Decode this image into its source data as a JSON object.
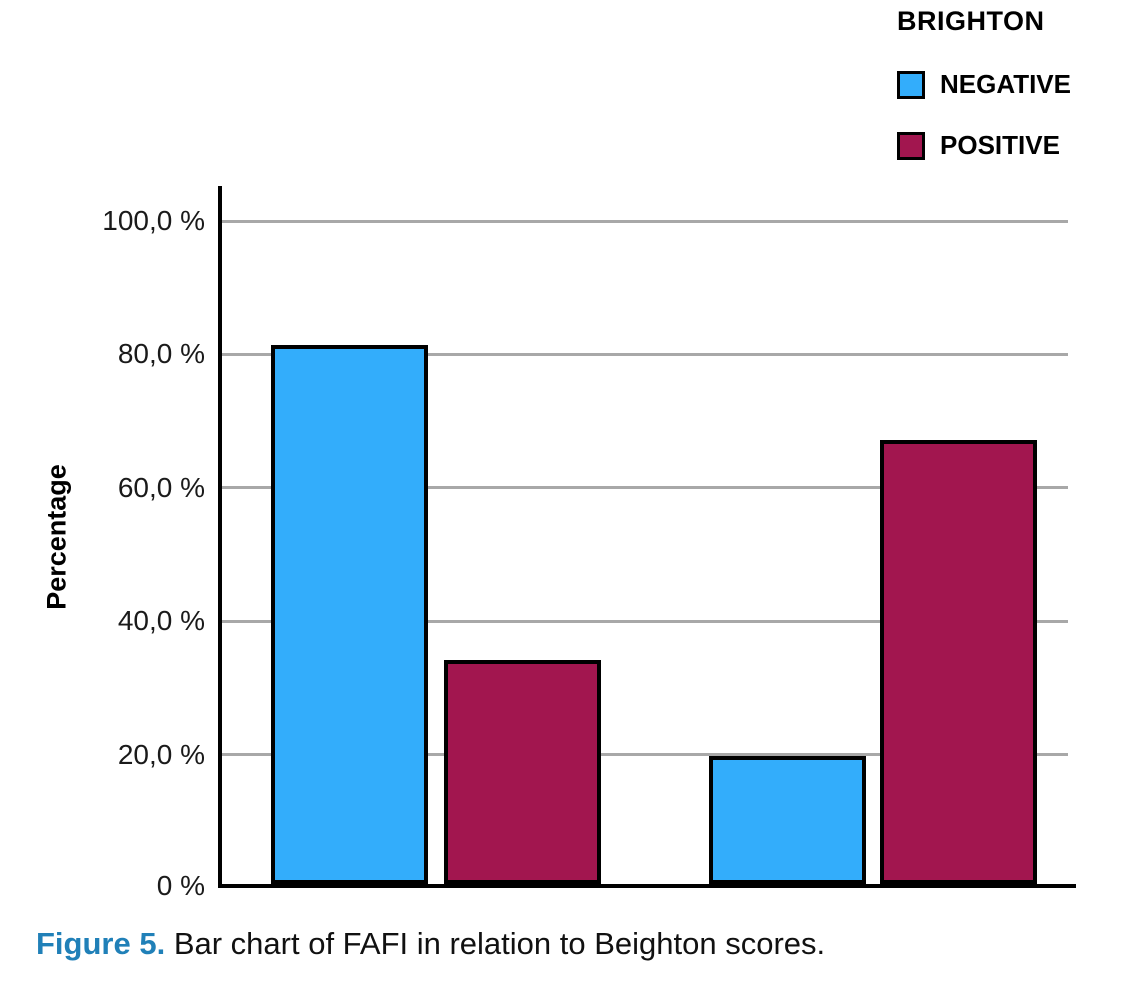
{
  "legend": {
    "title": "BRIGHTON",
    "items": [
      {
        "id": "negative",
        "label": "NEGATIVE",
        "color": "#33ADFB"
      },
      {
        "id": "positive",
        "label": "POSITIVE",
        "color": "#A2164F"
      }
    ]
  },
  "chart_data": {
    "type": "bar",
    "title": "",
    "xlabel": "",
    "ylabel": "Percentage",
    "ylim": [
      0,
      100
    ],
    "grid": true,
    "legend_position": "top-right",
    "categories": [
      "",
      ""
    ],
    "yticks": [
      {
        "value": 100,
        "label": "100,0 %"
      },
      {
        "value": 80,
        "label": "80,0 %"
      },
      {
        "value": 60,
        "label": "60,0 %"
      },
      {
        "value": 40,
        "label": "40,0 %"
      },
      {
        "value": 20,
        "label": "20,0 %"
      },
      {
        "value": 0,
        "label": "0 %"
      }
    ],
    "series": [
      {
        "name": "NEGATIVE",
        "color": "#33ADFB",
        "values": [
          80.8,
          19.2
        ]
      },
      {
        "name": "POSITIVE",
        "color": "#A2164F",
        "values": [
          33.6,
          66.6
        ]
      }
    ]
  },
  "caption": {
    "label": "Figure 5.",
    "text": " Bar chart of FAFI in relation to Beighton scores."
  }
}
